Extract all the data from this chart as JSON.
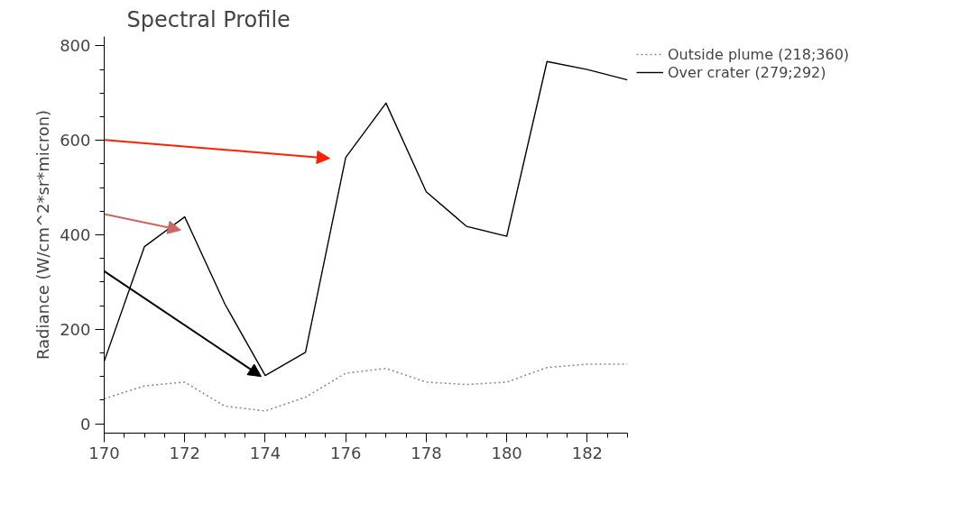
{
  "chart_data": {
    "type": "line",
    "title": "Spectral Profile",
    "ylabel": "Radiance (W/cm^2*sr*micron)",
    "x": [
      170,
      171,
      172,
      173,
      174,
      175,
      176,
      177,
      178,
      179,
      180,
      181,
      182,
      183
    ],
    "series": [
      {
        "name": "Outside plume (218;360)",
        "color": "#8c84b4",
        "line_style": "dotted",
        "values": [
          53,
          80,
          88,
          37,
          27,
          56,
          107,
          117,
          88,
          83,
          88,
          119,
          126,
          126
        ]
      },
      {
        "name": "Over crater (279;292)",
        "color": "#000000",
        "line_style": "solid",
        "values": [
          132,
          375,
          438,
          253,
          102,
          151,
          564,
          679,
          491,
          418,
          397,
          767,
          750,
          728
        ]
      }
    ],
    "xlim": [
      170,
      183
    ],
    "xticks": [
      170,
      172,
      174,
      176,
      178,
      180,
      182
    ],
    "ylim": [
      -20,
      820
    ],
    "yticks": [
      0,
      200,
      400,
      600,
      800
    ],
    "grid": false,
    "legend": "top right",
    "marker": "none"
  }
}
